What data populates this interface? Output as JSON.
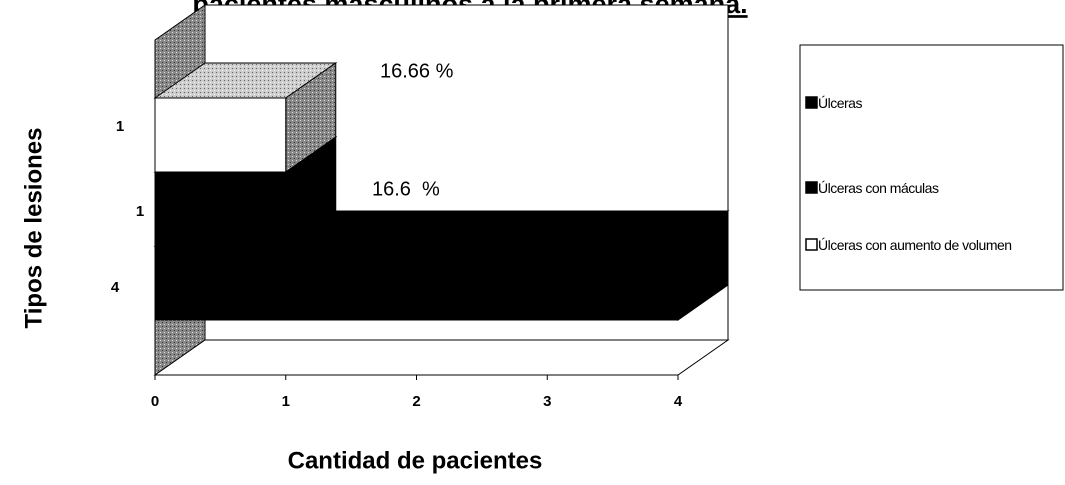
{
  "chart_data": {
    "type": "bar",
    "orientation": "horizontal",
    "title": "pacientes masculinos a la primera semana.",
    "x_label": "Cantidad de pacientes",
    "y_label": "Tipos de lesiones",
    "series": [
      {
        "name": "Úlceras",
        "color": "#000000",
        "values": [
          4
        ]
      },
      {
        "name": "Úlceras con máculas",
        "color": "#000000",
        "values": [
          1
        ]
      },
      {
        "name": "Úlceras con aumento de volumen",
        "color": "#ffffff",
        "values": [
          1
        ]
      }
    ],
    "annotations": [
      "16.66 %",
      "16.6  %"
    ],
    "xlim": [
      0,
      4
    ],
    "xticks": [
      0,
      1,
      2,
      3,
      4
    ],
    "legend": "right"
  }
}
